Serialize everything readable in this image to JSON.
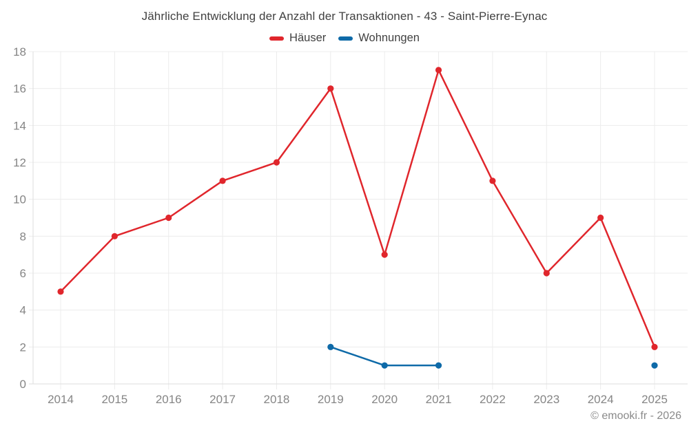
{
  "chart_data": {
    "type": "line",
    "title": "Jährliche Entwicklung der Anzahl der Transaktionen - 43 - Saint-Pierre-Eynac",
    "categories": [
      "2014",
      "2015",
      "2016",
      "2017",
      "2018",
      "2019",
      "2020",
      "2021",
      "2022",
      "2023",
      "2024",
      "2025"
    ],
    "series": [
      {
        "name": "Häuser",
        "color": "#e0262c",
        "values": [
          5,
          8,
          9,
          11,
          12,
          16,
          7,
          17,
          11,
          6,
          9,
          2
        ]
      },
      {
        "name": "Wohnungen",
        "color": "#0e6aa8",
        "values": [
          null,
          null,
          null,
          null,
          null,
          2,
          1,
          1,
          null,
          null,
          null,
          1
        ]
      }
    ],
    "xlabel": "",
    "ylabel": "",
    "ylim": [
      0,
      18
    ],
    "ytick_step": 2,
    "grid": true,
    "legend_position": "top"
  },
  "footer": {
    "credit": "© emooki.fr - 2026"
  },
  "colors": {
    "background": "#ffffff",
    "grid": "#ececec",
    "axis": "#dedede",
    "tick_label": "#858585",
    "title": "#414141"
  }
}
